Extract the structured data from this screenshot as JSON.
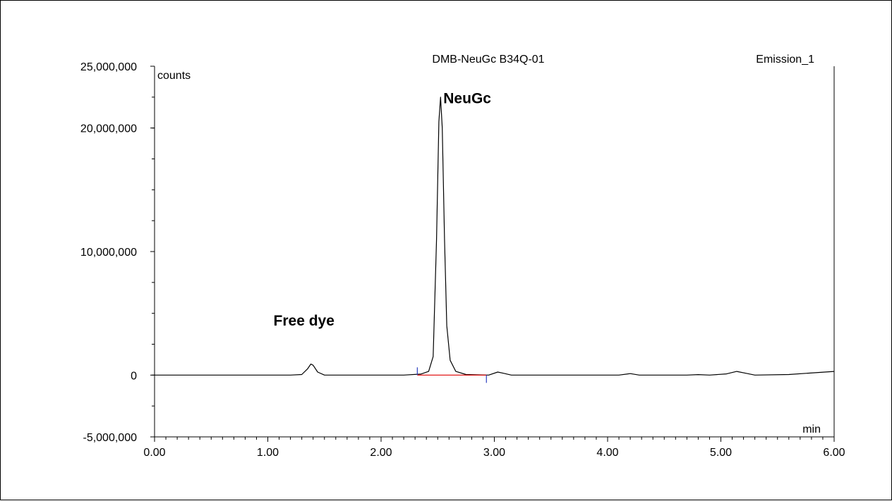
{
  "chart_data": {
    "type": "line",
    "title": "DMB-NeuGc B34Q-01",
    "channel_label": "Emission_1",
    "ylabel": "counts",
    "xlabel": "min",
    "xlim": [
      0,
      6
    ],
    "ylim": [
      -5000000,
      25000000
    ],
    "x_ticks": [
      "0.00",
      "1.00",
      "2.00",
      "3.00",
      "4.00",
      "5.00",
      "6.00"
    ],
    "y_ticks": [
      {
        "value": 25000000,
        "label": "25,000,000"
      },
      {
        "value": 20000000,
        "label": "20,000,000"
      },
      {
        "value": 10000000,
        "label": "10,000,000"
      },
      {
        "value": 0,
        "label": "0"
      },
      {
        "value": -5000000,
        "label": "-5,000,000"
      }
    ],
    "grid": false,
    "series": [
      {
        "color": "#000000",
        "points": [
          [
            0.0,
            0
          ],
          [
            1.2,
            0
          ],
          [
            1.3,
            50000
          ],
          [
            1.35,
            500000
          ],
          [
            1.38,
            900000
          ],
          [
            1.4,
            800000
          ],
          [
            1.44,
            250000
          ],
          [
            1.5,
            0
          ],
          [
            2.2,
            0
          ],
          [
            2.35,
            80000
          ],
          [
            2.42,
            300000
          ],
          [
            2.46,
            1500000
          ],
          [
            2.49,
            11000000
          ],
          [
            2.51,
            20500000
          ],
          [
            2.525,
            22500000
          ],
          [
            2.54,
            20000000
          ],
          [
            2.56,
            11000000
          ],
          [
            2.58,
            4000000
          ],
          [
            2.61,
            1200000
          ],
          [
            2.66,
            300000
          ],
          [
            2.75,
            50000
          ],
          [
            2.95,
            0
          ],
          [
            3.03,
            250000
          ],
          [
            3.08,
            150000
          ],
          [
            3.15,
            0
          ],
          [
            4.1,
            0
          ],
          [
            4.2,
            120000
          ],
          [
            4.28,
            0
          ],
          [
            4.7,
            0
          ],
          [
            4.8,
            40000
          ],
          [
            4.9,
            0
          ],
          [
            5.05,
            100000
          ],
          [
            5.14,
            300000
          ],
          [
            5.22,
            150000
          ],
          [
            5.3,
            0
          ],
          [
            5.6,
            50000
          ],
          [
            6.0,
            300000
          ]
        ]
      }
    ],
    "baseline": {
      "color": "#e00000",
      "x": [
        2.32,
        2.93
      ],
      "y": [
        0,
        0
      ]
    },
    "integration_markers": [
      {
        "x": 2.32,
        "color": "#2b3fbf"
      },
      {
        "x": 2.93,
        "color": "#2b3fbf"
      }
    ],
    "annotations": [
      {
        "text": "NeuGc",
        "x": 2.55,
        "y": 22000000
      },
      {
        "text": "Free dye",
        "x": 1.05,
        "y": 4000000
      }
    ]
  }
}
